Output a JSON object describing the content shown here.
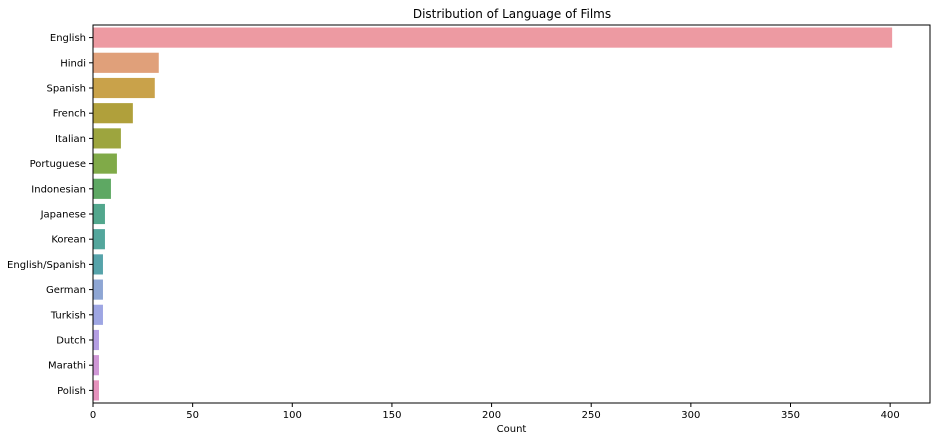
{
  "chart_data": {
    "type": "bar",
    "orientation": "horizontal",
    "title": "Distribution of Language of Films",
    "xlabel": "Count",
    "ylabel": "",
    "xlim": [
      0,
      420
    ],
    "xticks": [
      0,
      50,
      100,
      150,
      200,
      250,
      300,
      350,
      400
    ],
    "grid": false,
    "categories": [
      "English",
      "Hindi",
      "Spanish",
      "French",
      "Italian",
      "Portuguese",
      "Indonesian",
      "Japanese",
      "Korean",
      "English/Spanish",
      "German",
      "Turkish",
      "Dutch",
      "Marathi",
      "Polish"
    ],
    "values": [
      401,
      33,
      31,
      20,
      14,
      12,
      9,
      6,
      6,
      5,
      5,
      5,
      3,
      3,
      3
    ],
    "colors": [
      "#ed9aa2",
      "#e0a07a",
      "#c9a24a",
      "#b0a03b",
      "#9da53e",
      "#80aa48",
      "#5ea863",
      "#52a78d",
      "#53a69c",
      "#56a3aa",
      "#8ea6d4",
      "#9ea6e3",
      "#b59ee3",
      "#cf97d6",
      "#e692bd"
    ]
  }
}
